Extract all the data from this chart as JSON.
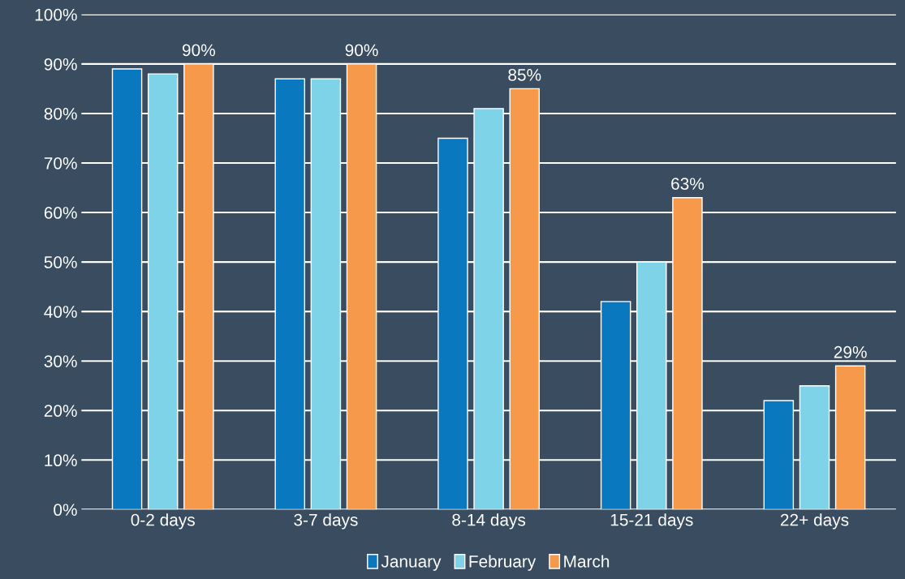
{
  "chart_data": {
    "type": "bar",
    "categories": [
      "0-2 days",
      "3-7 days",
      "8-14 days",
      "15-21 days",
      "22+ days"
    ],
    "series": [
      {
        "name": "January",
        "color": "#0a78be",
        "values": [
          89,
          87,
          75,
          42,
          22
        ]
      },
      {
        "name": "February",
        "color": "#7fd3e8",
        "values": [
          88,
          87,
          81,
          50,
          25
        ]
      },
      {
        "name": "March",
        "color": "#f7994a",
        "values": [
          90,
          90,
          85,
          63,
          29
        ],
        "value_labels": [
          "90%",
          "90%",
          "85%",
          "63%",
          "29%"
        ]
      }
    ],
    "ylim": [
      0,
      100
    ],
    "yticks": [
      {
        "value": 0,
        "label": "0%"
      },
      {
        "value": 10,
        "label": "10%"
      },
      {
        "value": 20,
        "label": "20%"
      },
      {
        "value": 30,
        "label": "30%"
      },
      {
        "value": 40,
        "label": "40%"
      },
      {
        "value": 50,
        "label": "50%"
      },
      {
        "value": 60,
        "label": "60%"
      },
      {
        "value": 70,
        "label": "70%"
      },
      {
        "value": 80,
        "label": "80%"
      },
      {
        "value": 90,
        "label": "90%"
      },
      {
        "value": 100,
        "label": "100%"
      }
    ],
    "grid": "y",
    "legend": "bottom"
  }
}
